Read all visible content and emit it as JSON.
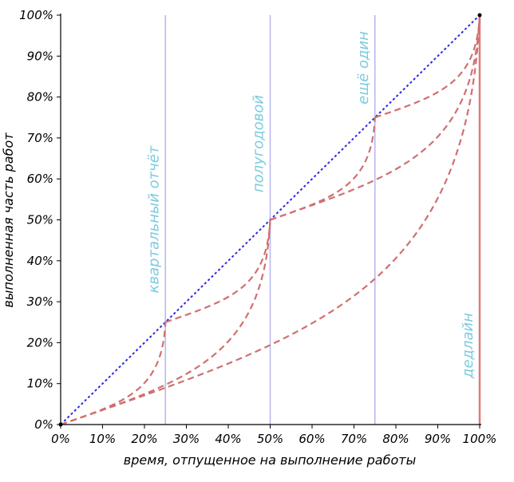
{
  "chart_data": {
    "type": "line",
    "xlabel": "время, отпущенное на выполнение работы",
    "ylabel": "выполненная часть работ",
    "xlim": [
      0,
      100
    ],
    "ylim": [
      0,
      100
    ],
    "x_ticks": [
      "0%",
      "10%",
      "20%",
      "30%",
      "40%",
      "50%",
      "60%",
      "70%",
      "80%",
      "90%",
      "100%"
    ],
    "y_ticks": [
      "0%",
      "10%",
      "20%",
      "30%",
      "40%",
      "50%",
      "60%",
      "70%",
      "80%",
      "90%",
      "100%"
    ],
    "grid": false,
    "milestones": [
      {
        "x": 25,
        "label": "квартальный отчёт"
      },
      {
        "x": 50,
        "label": "полугодовой"
      },
      {
        "x": 75,
        "label": "ещё один"
      },
      {
        "x": 100,
        "label": "дедлайн"
      }
    ],
    "colors": {
      "ideal": "#2a2ae6",
      "actual": "#d07070",
      "milestone_line": "#b8b8f2",
      "milestone_text": "#7ccbdf",
      "deadline_line": "#e07a7a"
    },
    "series": [
      {
        "style": "ideal-dotted",
        "points": [
          [
            0,
            0
          ],
          [
            100,
            100
          ]
        ]
      },
      {
        "style": "actual-dashed",
        "points": [
          [
            0,
            0
          ],
          [
            25,
            25
          ]
        ]
      },
      {
        "style": "actual-dashed",
        "points": [
          [
            25,
            25
          ],
          [
            50,
            50
          ]
        ]
      },
      {
        "style": "actual-dashed",
        "points": [
          [
            50,
            50
          ],
          [
            75,
            75
          ]
        ]
      },
      {
        "style": "actual-dashed",
        "points": [
          [
            75,
            75
          ],
          [
            100,
            100
          ]
        ]
      },
      {
        "style": "actual-dashed",
        "points": [
          [
            0,
            0
          ],
          [
            50,
            50
          ]
        ]
      },
      {
        "style": "actual-dashed",
        "points": [
          [
            50,
            50
          ],
          [
            100,
            100
          ]
        ]
      },
      {
        "style": "actual-dashed",
        "points": [
          [
            0,
            0
          ],
          [
            100,
            100
          ]
        ]
      }
    ]
  }
}
